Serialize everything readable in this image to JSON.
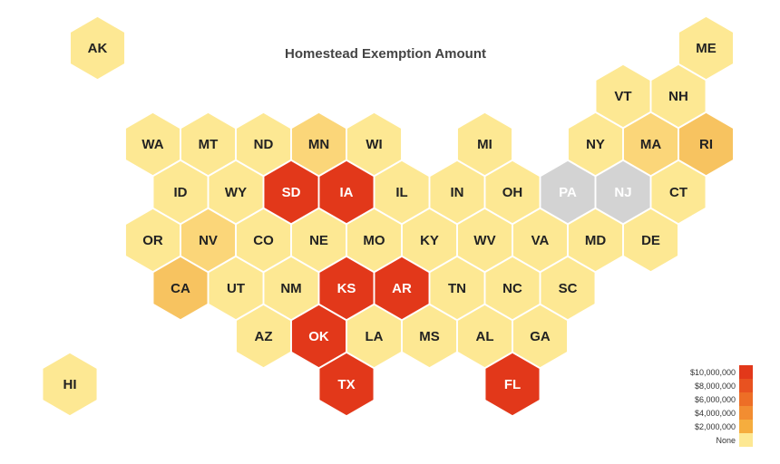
{
  "chart_data": {
    "type": "hex-tile-map",
    "title": "Homestead Exemption Amount",
    "no_data_color": "#d3d3d3",
    "color_scale": [
      "#fde893",
      "#fbd679",
      "#f7c360",
      "#f29f45",
      "#ec6b2d",
      "#e2381a"
    ],
    "legend": {
      "position": "bottom-right",
      "labels": [
        "$10,000,000",
        "$8,000,000",
        "$6,000,000",
        "$4,000,000",
        "$2,000,000",
        "None"
      ],
      "colors": [
        "#e2381a",
        "#e85220",
        "#ed6e26",
        "#f28d31",
        "#f5ad3e",
        "#fde893"
      ]
    },
    "states": [
      {
        "abbr": "AK",
        "row": 0,
        "col": 0.5,
        "level": 0
      },
      {
        "abbr": "ME",
        "row": 0,
        "col": 11.5,
        "level": 0
      },
      {
        "abbr": "VT",
        "row": 1,
        "col": 10,
        "level": 0
      },
      {
        "abbr": "NH",
        "row": 1,
        "col": 11,
        "level": 0
      },
      {
        "abbr": "WA",
        "row": 2,
        "col": 1.5,
        "level": 0
      },
      {
        "abbr": "MT",
        "row": 2,
        "col": 2.5,
        "level": 0
      },
      {
        "abbr": "ND",
        "row": 2,
        "col": 3.5,
        "level": 0
      },
      {
        "abbr": "MN",
        "row": 2,
        "col": 4.5,
        "level": 1
      },
      {
        "abbr": "WI",
        "row": 2,
        "col": 5.5,
        "level": 0
      },
      {
        "abbr": "MI",
        "row": 2,
        "col": 7.5,
        "level": 0
      },
      {
        "abbr": "NY",
        "row": 2,
        "col": 9.5,
        "level": 0
      },
      {
        "abbr": "MA",
        "row": 2,
        "col": 10.5,
        "level": 1
      },
      {
        "abbr": "RI",
        "row": 2,
        "col": 11.5,
        "level": 2
      },
      {
        "abbr": "ID",
        "row": 3,
        "col": 2,
        "level": 0
      },
      {
        "abbr": "WY",
        "row": 3,
        "col": 3,
        "level": 0
      },
      {
        "abbr": "SD",
        "row": 3,
        "col": 4,
        "level": 5
      },
      {
        "abbr": "IA",
        "row": 3,
        "col": 5,
        "level": 5
      },
      {
        "abbr": "IL",
        "row": 3,
        "col": 6,
        "level": 0
      },
      {
        "abbr": "IN",
        "row": 3,
        "col": 7,
        "level": 0
      },
      {
        "abbr": "OH",
        "row": 3,
        "col": 8,
        "level": 0
      },
      {
        "abbr": "PA",
        "row": 3,
        "col": 9,
        "level": null
      },
      {
        "abbr": "NJ",
        "row": 3,
        "col": 10,
        "level": null
      },
      {
        "abbr": "CT",
        "row": 3,
        "col": 11,
        "level": 0
      },
      {
        "abbr": "OR",
        "row": 4,
        "col": 1.5,
        "level": 0
      },
      {
        "abbr": "NV",
        "row": 4,
        "col": 2.5,
        "level": 1
      },
      {
        "abbr": "CO",
        "row": 4,
        "col": 3.5,
        "level": 0
      },
      {
        "abbr": "NE",
        "row": 4,
        "col": 4.5,
        "level": 0
      },
      {
        "abbr": "MO",
        "row": 4,
        "col": 5.5,
        "level": 0
      },
      {
        "abbr": "KY",
        "row": 4,
        "col": 6.5,
        "level": 0
      },
      {
        "abbr": "WV",
        "row": 4,
        "col": 7.5,
        "level": 0
      },
      {
        "abbr": "VA",
        "row": 4,
        "col": 8.5,
        "level": 0
      },
      {
        "abbr": "MD",
        "row": 4,
        "col": 9.5,
        "level": 0
      },
      {
        "abbr": "DE",
        "row": 4,
        "col": 10.5,
        "level": 0
      },
      {
        "abbr": "CA",
        "row": 5,
        "col": 2,
        "level": 2
      },
      {
        "abbr": "UT",
        "row": 5,
        "col": 3,
        "level": 0
      },
      {
        "abbr": "NM",
        "row": 5,
        "col": 4,
        "level": 0
      },
      {
        "abbr": "KS",
        "row": 5,
        "col": 5,
        "level": 5
      },
      {
        "abbr": "AR",
        "row": 5,
        "col": 6,
        "level": 5
      },
      {
        "abbr": "TN",
        "row": 5,
        "col": 7,
        "level": 0
      },
      {
        "abbr": "NC",
        "row": 5,
        "col": 8,
        "level": 0
      },
      {
        "abbr": "SC",
        "row": 5,
        "col": 9,
        "level": 0
      },
      {
        "abbr": "AZ",
        "row": 6,
        "col": 3.5,
        "level": 0
      },
      {
        "abbr": "OK",
        "row": 6,
        "col": 4.5,
        "level": 5
      },
      {
        "abbr": "LA",
        "row": 6,
        "col": 5.5,
        "level": 0
      },
      {
        "abbr": "MS",
        "row": 6,
        "col": 6.5,
        "level": 0
      },
      {
        "abbr": "AL",
        "row": 6,
        "col": 7.5,
        "level": 0
      },
      {
        "abbr": "GA",
        "row": 6,
        "col": 8.5,
        "level": 0
      },
      {
        "abbr": "HI",
        "row": 7,
        "col": 0,
        "level": 0
      },
      {
        "abbr": "TX",
        "row": 7,
        "col": 5,
        "level": 5
      },
      {
        "abbr": "FL",
        "row": 7,
        "col": 8,
        "level": 5
      }
    ]
  }
}
